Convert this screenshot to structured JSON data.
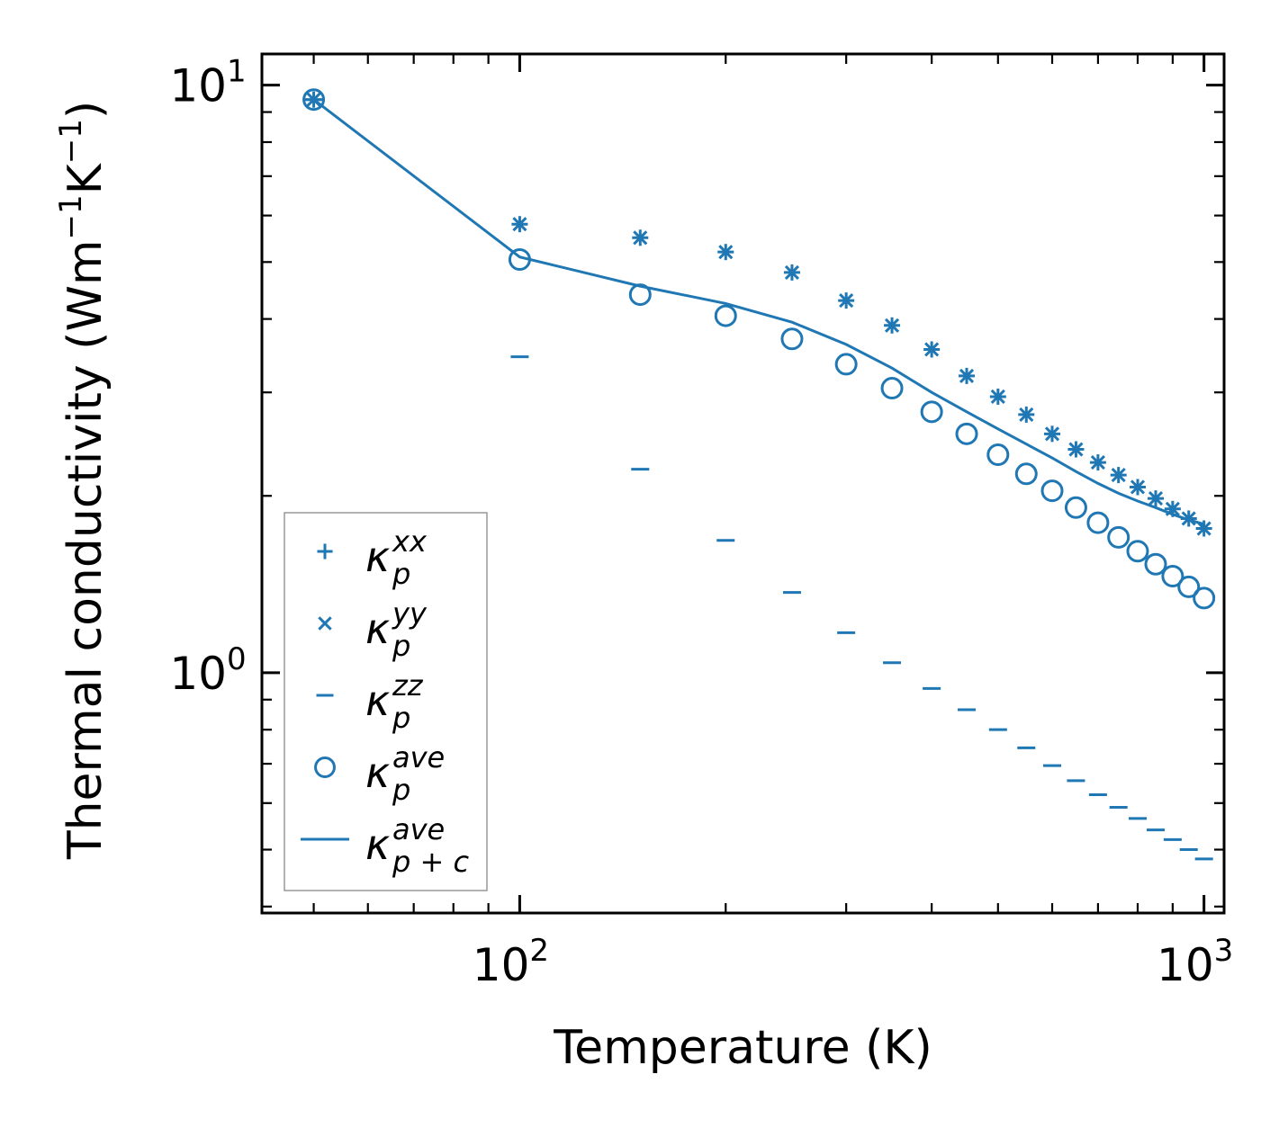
{
  "chart_data": {
    "type": "scatter",
    "xscale": "log",
    "yscale": "log",
    "xlim": [
      42,
      1070
    ],
    "ylim": [
      0.39,
      11.3
    ],
    "xlabel": "Temperature (K)",
    "ylabel_parts": {
      "main": "Thermal conductivity (Wm",
      "exp1": "−1",
      "mid": "K",
      "exp2": "−1",
      "close": ")"
    },
    "xticks": [
      {
        "value": 100,
        "base": "10",
        "exp": "2"
      },
      {
        "value": 1000,
        "base": "10",
        "exp": "3"
      }
    ],
    "yticks": [
      {
        "value": 1,
        "base": "10",
        "exp": "0"
      },
      {
        "value": 10,
        "base": "10",
        "exp": "1"
      }
    ],
    "color": "#1f77b4",
    "temperatures": [
      50,
      100,
      150,
      200,
      250,
      300,
      350,
      400,
      450,
      500,
      550,
      600,
      650,
      700,
      750,
      800,
      850,
      900,
      950,
      1000
    ],
    "series": [
      {
        "name": "kappa_p^xx",
        "marker": "plus",
        "values": [
          9.45,
          5.8,
          5.5,
          5.2,
          4.8,
          4.3,
          3.9,
          3.55,
          3.2,
          2.95,
          2.75,
          2.55,
          2.4,
          2.28,
          2.17,
          2.07,
          1.98,
          1.9,
          1.83,
          1.76
        ]
      },
      {
        "name": "kappa_p^yy",
        "marker": "x",
        "values": [
          9.45,
          5.8,
          5.5,
          5.2,
          4.8,
          4.3,
          3.9,
          3.55,
          3.2,
          2.95,
          2.75,
          2.55,
          2.4,
          2.28,
          2.17,
          2.07,
          1.98,
          1.9,
          1.83,
          1.76
        ]
      },
      {
        "name": "kappa_p^zz",
        "marker": "hline",
        "values": [
          9.45,
          3.45,
          2.22,
          1.68,
          1.37,
          1.17,
          1.04,
          0.94,
          0.865,
          0.8,
          0.745,
          0.695,
          0.655,
          0.62,
          0.59,
          0.565,
          0.54,
          0.52,
          0.5,
          0.482
        ]
      },
      {
        "name": "kappa_p^ave",
        "marker": "circle",
        "values": [
          9.45,
          5.05,
          4.4,
          4.05,
          3.7,
          3.35,
          3.05,
          2.78,
          2.55,
          2.35,
          2.18,
          2.04,
          1.91,
          1.8,
          1.7,
          1.61,
          1.53,
          1.46,
          1.4,
          1.34
        ]
      },
      {
        "name": "kappa_{p+c}^ave",
        "marker": "line",
        "values": [
          9.45,
          5.1,
          4.55,
          4.25,
          3.95,
          3.62,
          3.3,
          3.0,
          2.78,
          2.6,
          2.45,
          2.32,
          2.2,
          2.1,
          2.02,
          1.96,
          1.91,
          1.86,
          1.82,
          1.79
        ]
      }
    ],
    "legend": {
      "position": "lower-left",
      "entries": [
        {
          "marker": "plus",
          "kappa": "κ",
          "sup": "xx",
          "sub": "p"
        },
        {
          "marker": "x",
          "kappa": "κ",
          "sup": "yy",
          "sub": "p"
        },
        {
          "marker": "hline",
          "kappa": "κ",
          "sup": "zz",
          "sub": "p"
        },
        {
          "marker": "circle",
          "kappa": "κ",
          "sup": "ave",
          "sub": "p"
        },
        {
          "marker": "line",
          "kappa": "κ",
          "sup": "ave",
          "sub": "p + c"
        }
      ]
    }
  }
}
